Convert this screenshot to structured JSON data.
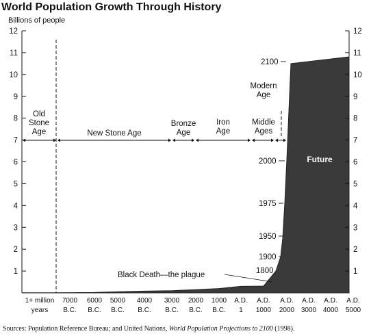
{
  "chart_data": {
    "type": "area",
    "title": "World Population Growth Through History",
    "ylabel": "Billions of people",
    "ylim": [
      0,
      12
    ],
    "yticks": [
      "1",
      "2",
      "3",
      "4",
      "5",
      "6",
      "7",
      "8",
      "9",
      "10",
      "11",
      "12"
    ],
    "xticks": [
      {
        "l1": "1+ million",
        "l2": "years"
      },
      {
        "l1": "7000",
        "l2": "B.C."
      },
      {
        "l1": "6000",
        "l2": "B.C."
      },
      {
        "l1": "5000",
        "l2": "B.C."
      },
      {
        "l1": "4000",
        "l2": "B.C."
      },
      {
        "l1": "3000",
        "l2": "B.C."
      },
      {
        "l1": "2000",
        "l2": "B.C."
      },
      {
        "l1": "1000",
        "l2": "B.C."
      },
      {
        "l1": "A.D.",
        "l2": "1"
      },
      {
        "l1": "A.D.",
        "l2": "1000"
      },
      {
        "l1": "A.D.",
        "l2": "2000"
      },
      {
        "l1": "A.D.",
        "l2": "3000"
      },
      {
        "l1": "A.D.",
        "l2": "4000"
      },
      {
        "l1": "A.D.",
        "l2": "5000"
      }
    ],
    "series": [
      {
        "values": [
          {
            "x": "1+ million years",
            "y": 0.005
          },
          {
            "x": "7000 B.C.",
            "y": 0.008
          },
          {
            "x": "6000 B.C.",
            "y": 0.02
          },
          {
            "x": "5000 B.C.",
            "y": 0.05
          },
          {
            "x": "4000 B.C.",
            "y": 0.08
          },
          {
            "x": "3000 B.C.",
            "y": 0.1
          },
          {
            "x": "2000 B.C.",
            "y": 0.15
          },
          {
            "x": "1000 B.C.",
            "y": 0.2
          },
          {
            "x": "A.D. 1",
            "y": 0.3
          },
          {
            "x": "A.D. 1000",
            "y": 0.31
          },
          {
            "x": "1800",
            "y": 1.0
          },
          {
            "x": "1900",
            "y": 1.65
          },
          {
            "x": "1950",
            "y": 2.5
          },
          {
            "x": "1975",
            "y": 4.1
          },
          {
            "x": "2000",
            "y": 6.1
          },
          {
            "x": "2100",
            "y": 10.5
          },
          {
            "x": "A.D. 5000",
            "y": 10.8
          }
        ]
      }
    ],
    "eras": [
      "Old\nStone\nAge",
      "New Stone Age",
      "Bronze\nAge",
      "Iron\nAge",
      "Middle\nAges",
      "Modern\nAge"
    ],
    "year_labels": [
      "2100",
      "2000",
      "1975",
      "1950",
      "1900",
      "1800"
    ],
    "annotations": [
      "Black Death—the plague",
      "Future"
    ],
    "source": {
      "prefix": "Sources: Population Reference Bureau; and United Nations, ",
      "title": "World Population Projections to 2100",
      "suffix": " (1998)."
    }
  }
}
